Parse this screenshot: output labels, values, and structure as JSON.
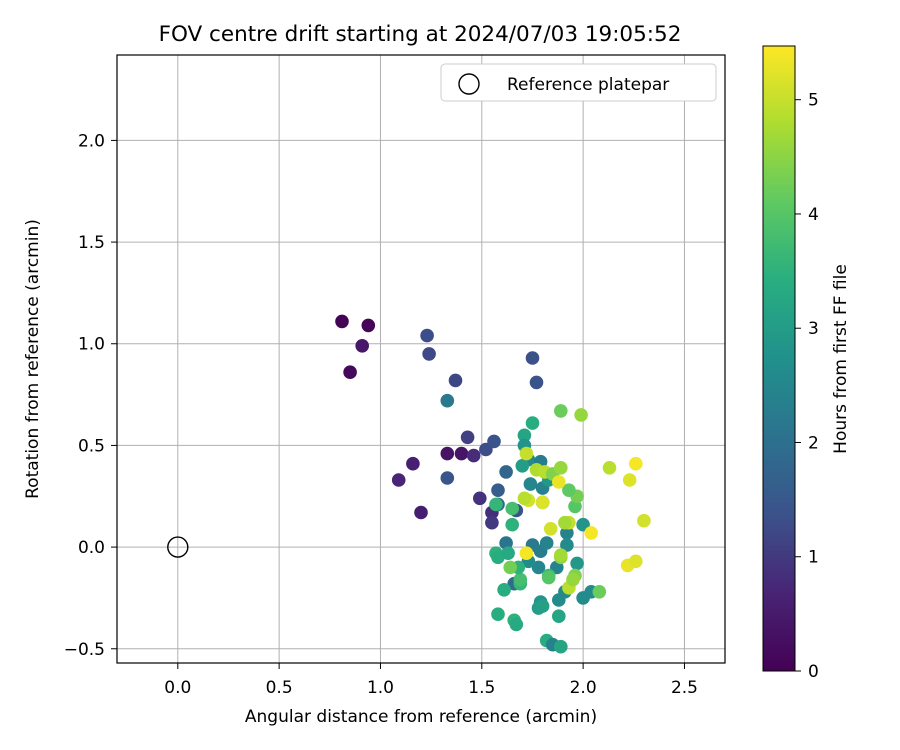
{
  "chart_data": {
    "type": "scatter",
    "title": "FOV centre drift starting at 2024/07/03 19:05:52",
    "xlabel": "Angular distance from reference (arcmin)",
    "ylabel": "Rotation from reference (arcmin)",
    "xlim": [
      -0.3,
      2.7
    ],
    "ylim": [
      -0.57,
      2.42
    ],
    "xticks": [
      "0.0",
      "0.5",
      "1.0",
      "1.5",
      "2.0",
      "2.5"
    ],
    "yticks": [
      "−0.5",
      "0.0",
      "0.5",
      "1.0",
      "1.5",
      "2.0"
    ],
    "grid": true,
    "legend": {
      "position": "top-right",
      "entries": [
        "Reference platepar"
      ]
    },
    "reference_point": {
      "x": 0.0,
      "y": 0.0,
      "marker": "open-circle"
    },
    "colorbar": {
      "label": "Hours from first FF file",
      "colormap": "viridis",
      "range": [
        0,
        5.47
      ],
      "ticks": [
        "0",
        "1",
        "2",
        "3",
        "4",
        "5"
      ]
    },
    "points": [
      {
        "x": 0.81,
        "y": 1.11,
        "h": 0.05
      },
      {
        "x": 0.94,
        "y": 1.09,
        "h": 0.1
      },
      {
        "x": 0.91,
        "y": 0.99,
        "h": 0.45
      },
      {
        "x": 0.85,
        "y": 0.86,
        "h": 0.15
      },
      {
        "x": 1.23,
        "y": 1.04,
        "h": 1.3
      },
      {
        "x": 1.24,
        "y": 0.95,
        "h": 1.25
      },
      {
        "x": 1.37,
        "y": 0.82,
        "h": 1.2
      },
      {
        "x": 1.33,
        "y": 0.72,
        "h": 2.2
      },
      {
        "x": 1.16,
        "y": 0.41,
        "h": 0.6
      },
      {
        "x": 1.09,
        "y": 0.33,
        "h": 0.7
      },
      {
        "x": 1.2,
        "y": 0.17,
        "h": 0.55
      },
      {
        "x": 1.33,
        "y": 0.46,
        "h": 0.35
      },
      {
        "x": 1.4,
        "y": 0.46,
        "h": 0.4
      },
      {
        "x": 1.43,
        "y": 0.54,
        "h": 1.1
      },
      {
        "x": 1.46,
        "y": 0.45,
        "h": 0.8
      },
      {
        "x": 1.52,
        "y": 0.48,
        "h": 1.3
      },
      {
        "x": 1.56,
        "y": 0.52,
        "h": 1.4
      },
      {
        "x": 1.33,
        "y": 0.34,
        "h": 1.45
      },
      {
        "x": 1.49,
        "y": 0.24,
        "h": 0.9
      },
      {
        "x": 1.55,
        "y": 0.17,
        "h": 0.85
      },
      {
        "x": 1.55,
        "y": 0.12,
        "h": 1.0
      },
      {
        "x": 1.58,
        "y": 0.28,
        "h": 1.6
      },
      {
        "x": 1.58,
        "y": 0.21,
        "h": 1.7
      },
      {
        "x": 1.62,
        "y": 0.37,
        "h": 1.8
      },
      {
        "x": 1.67,
        "y": 0.18,
        "h": 1.35
      },
      {
        "x": 1.62,
        "y": 0.02,
        "h": 2.1
      },
      {
        "x": 1.66,
        "y": -0.18,
        "h": 1.9
      },
      {
        "x": 1.75,
        "y": 0.93,
        "h": 1.35
      },
      {
        "x": 1.77,
        "y": 0.81,
        "h": 1.4
      },
      {
        "x": 1.71,
        "y": 0.55,
        "h": 3.2
      },
      {
        "x": 1.75,
        "y": 0.61,
        "h": 3.4
      },
      {
        "x": 1.71,
        "y": 0.5,
        "h": 2.8
      },
      {
        "x": 1.73,
        "y": 0.43,
        "h": 2.6
      },
      {
        "x": 1.7,
        "y": 0.4,
        "h": 3.0
      },
      {
        "x": 1.74,
        "y": 0.31,
        "h": 2.5
      },
      {
        "x": 1.79,
        "y": 0.42,
        "h": 2.3
      },
      {
        "x": 1.8,
        "y": 0.29,
        "h": 2.4
      },
      {
        "x": 1.8,
        "y": 0.22,
        "h": 2.7
      },
      {
        "x": 1.83,
        "y": 0.33,
        "h": 2.9
      },
      {
        "x": 1.75,
        "y": 0.01,
        "h": 2.2
      },
      {
        "x": 1.79,
        "y": -0.02,
        "h": 2.3
      },
      {
        "x": 1.78,
        "y": -0.1,
        "h": 2.5
      },
      {
        "x": 1.73,
        "y": -0.07,
        "h": 2.6
      },
      {
        "x": 1.82,
        "y": 0.02,
        "h": 2.4
      },
      {
        "x": 1.87,
        "y": -0.1,
        "h": 2.4
      },
      {
        "x": 1.92,
        "y": 0.07,
        "h": 2.4
      },
      {
        "x": 1.92,
        "y": 0.01,
        "h": 2.6
      },
      {
        "x": 1.97,
        "y": -0.08,
        "h": 2.9
      },
      {
        "x": 2.0,
        "y": 0.11,
        "h": 2.8
      },
      {
        "x": 1.91,
        "y": -0.22,
        "h": 2.6
      },
      {
        "x": 2.0,
        "y": -0.25,
        "h": 2.6
      },
      {
        "x": 2.04,
        "y": -0.22,
        "h": 2.6
      },
      {
        "x": 1.88,
        "y": -0.26,
        "h": 2.6
      },
      {
        "x": 1.79,
        "y": -0.27,
        "h": 2.8
      },
      {
        "x": 1.78,
        "y": -0.3,
        "h": 3.0
      },
      {
        "x": 1.8,
        "y": -0.29,
        "h": 3.1
      },
      {
        "x": 1.88,
        "y": -0.34,
        "h": 3.2
      },
      {
        "x": 1.82,
        "y": -0.46,
        "h": 3.4
      },
      {
        "x": 1.85,
        "y": -0.48,
        "h": 2.4
      },
      {
        "x": 1.89,
        "y": -0.49,
        "h": 3.2
      },
      {
        "x": 1.58,
        "y": -0.33,
        "h": 3.4
      },
      {
        "x": 1.66,
        "y": -0.36,
        "h": 3.5
      },
      {
        "x": 1.67,
        "y": -0.38,
        "h": 3.3
      },
      {
        "x": 1.61,
        "y": -0.21,
        "h": 3.4
      },
      {
        "x": 1.69,
        "y": -0.18,
        "h": 3.6
      },
      {
        "x": 1.69,
        "y": -0.16,
        "h": 3.8
      },
      {
        "x": 1.68,
        "y": -0.1,
        "h": 3.5
      },
      {
        "x": 1.57,
        "y": -0.03,
        "h": 3.5
      },
      {
        "x": 1.58,
        "y": -0.05,
        "h": 3.4
      },
      {
        "x": 1.63,
        "y": -0.03,
        "h": 3.3
      },
      {
        "x": 1.65,
        "y": 0.11,
        "h": 3.5
      },
      {
        "x": 1.57,
        "y": 0.21,
        "h": 3.6
      },
      {
        "x": 1.65,
        "y": 0.19,
        "h": 3.8
      },
      {
        "x": 1.64,
        "y": -0.1,
        "h": 4.3
      },
      {
        "x": 1.83,
        "y": -0.14,
        "h": 3.7
      },
      {
        "x": 1.83,
        "y": -0.15,
        "h": 4.0
      },
      {
        "x": 1.89,
        "y": -0.05,
        "h": 4.5
      },
      {
        "x": 1.89,
        "y": -0.04,
        "h": 4.7
      },
      {
        "x": 1.96,
        "y": -0.14,
        "h": 4.4
      },
      {
        "x": 1.93,
        "y": -0.2,
        "h": 4.9
      },
      {
        "x": 1.95,
        "y": -0.16,
        "h": 4.6
      },
      {
        "x": 2.08,
        "y": -0.22,
        "h": 4.2
      },
      {
        "x": 1.93,
        "y": 0.12,
        "h": 5.0
      },
      {
        "x": 1.84,
        "y": 0.09,
        "h": 5.1
      },
      {
        "x": 1.91,
        "y": 0.12,
        "h": 4.7
      },
      {
        "x": 1.96,
        "y": 0.2,
        "h": 4.0
      },
      {
        "x": 1.97,
        "y": 0.25,
        "h": 4.3
      },
      {
        "x": 1.93,
        "y": 0.28,
        "h": 4.1
      },
      {
        "x": 1.89,
        "y": 0.67,
        "h": 4.2
      },
      {
        "x": 1.99,
        "y": 0.65,
        "h": 4.6
      },
      {
        "x": 1.72,
        "y": 0.46,
        "h": 5.0
      },
      {
        "x": 1.77,
        "y": 0.38,
        "h": 4.8
      },
      {
        "x": 1.81,
        "y": 0.37,
        "h": 4.9
      },
      {
        "x": 1.85,
        "y": 0.36,
        "h": 4.4
      },
      {
        "x": 1.89,
        "y": 0.39,
        "h": 4.6
      },
      {
        "x": 1.88,
        "y": 0.32,
        "h": 5.3
      },
      {
        "x": 1.8,
        "y": 0.22,
        "h": 5.2
      },
      {
        "x": 1.73,
        "y": 0.23,
        "h": 5.1
      },
      {
        "x": 1.71,
        "y": 0.24,
        "h": 4.9
      },
      {
        "x": 1.72,
        "y": -0.03,
        "h": 5.4
      },
      {
        "x": 2.04,
        "y": 0.07,
        "h": 5.4
      },
      {
        "x": 2.13,
        "y": 0.39,
        "h": 4.9
      },
      {
        "x": 2.26,
        "y": 0.41,
        "h": 5.4
      },
      {
        "x": 2.23,
        "y": 0.33,
        "h": 5.2
      },
      {
        "x": 2.3,
        "y": 0.13,
        "h": 5.1
      },
      {
        "x": 2.22,
        "y": -0.09,
        "h": 5.3
      },
      {
        "x": 2.26,
        "y": -0.07,
        "h": 5.2
      }
    ]
  }
}
